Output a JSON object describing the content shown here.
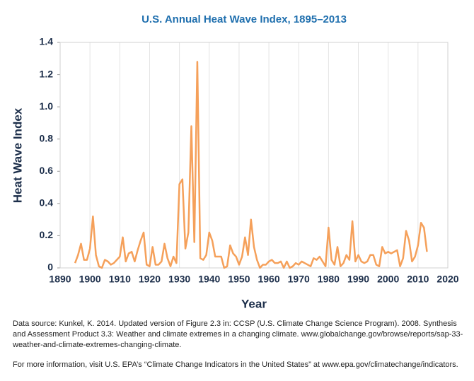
{
  "chart_data": {
    "type": "line",
    "title": "U.S. Annual Heat Wave Index, 1895–2013",
    "xlabel": "Year",
    "ylabel": "Heat Wave Index",
    "x": [
      1895,
      1896,
      1897,
      1898,
      1899,
      1900,
      1901,
      1902,
      1903,
      1904,
      1905,
      1906,
      1907,
      1908,
      1909,
      1910,
      1911,
      1912,
      1913,
      1914,
      1915,
      1916,
      1917,
      1918,
      1919,
      1920,
      1921,
      1922,
      1923,
      1924,
      1925,
      1926,
      1927,
      1928,
      1929,
      1930,
      1931,
      1932,
      1933,
      1934,
      1935,
      1936,
      1937,
      1938,
      1939,
      1940,
      1941,
      1942,
      1943,
      1944,
      1945,
      1946,
      1947,
      1948,
      1949,
      1950,
      1951,
      1952,
      1953,
      1954,
      1955,
      1956,
      1957,
      1958,
      1959,
      1960,
      1961,
      1962,
      1963,
      1964,
      1965,
      1966,
      1967,
      1968,
      1969,
      1970,
      1971,
      1972,
      1973,
      1974,
      1975,
      1976,
      1977,
      1978,
      1979,
      1980,
      1981,
      1982,
      1983,
      1984,
      1985,
      1986,
      1987,
      1988,
      1989,
      1990,
      1991,
      1992,
      1993,
      1994,
      1995,
      1996,
      1997,
      1998,
      1999,
      2000,
      2001,
      2002,
      2003,
      2004,
      2005,
      2006,
      2007,
      2008,
      2009,
      2010,
      2011,
      2012,
      2013
    ],
    "series": [
      {
        "name": "Heat Wave Index",
        "color": "#f5a05a",
        "values": [
          0.03,
          0.08,
          0.15,
          0.05,
          0.05,
          0.12,
          0.32,
          0.08,
          0.01,
          0.0,
          0.05,
          0.04,
          0.02,
          0.03,
          0.05,
          0.07,
          0.19,
          0.04,
          0.09,
          0.1,
          0.04,
          0.11,
          0.17,
          0.22,
          0.02,
          0.01,
          0.13,
          0.02,
          0.02,
          0.04,
          0.15,
          0.06,
          0.01,
          0.07,
          0.03,
          0.52,
          0.55,
          0.12,
          0.22,
          0.88,
          0.16,
          1.28,
          0.06,
          0.05,
          0.08,
          0.22,
          0.17,
          0.07,
          0.07,
          0.07,
          0.0,
          0.01,
          0.14,
          0.09,
          0.07,
          0.02,
          0.07,
          0.19,
          0.08,
          0.3,
          0.13,
          0.05,
          0.0,
          0.02,
          0.02,
          0.04,
          0.05,
          0.03,
          0.03,
          0.04,
          0.0,
          0.04,
          0.0,
          0.01,
          0.03,
          0.02,
          0.04,
          0.03,
          0.02,
          0.01,
          0.06,
          0.05,
          0.07,
          0.04,
          0.01,
          0.25,
          0.05,
          0.02,
          0.13,
          0.01,
          0.03,
          0.08,
          0.05,
          0.29,
          0.04,
          0.08,
          0.04,
          0.03,
          0.04,
          0.08,
          0.08,
          0.02,
          0.01,
          0.13,
          0.09,
          0.1,
          0.09,
          0.1,
          0.11,
          0.01,
          0.06,
          0.23,
          0.17,
          0.04,
          0.07,
          0.14,
          0.28,
          0.25,
          0.1
        ]
      }
    ],
    "xlim": [
      1890,
      2020
    ],
    "xticks": [
      1890,
      1900,
      1910,
      1920,
      1930,
      1940,
      1950,
      1960,
      1970,
      1980,
      1990,
      2000,
      2010,
      2020
    ],
    "ylim": [
      0,
      1.4
    ],
    "yticks": [
      0,
      0.2,
      0.4,
      0.6,
      0.8,
      {
        "value": 1,
        "label": "1.0"
      },
      1.2,
      1.4
    ],
    "grid": "x",
    "notes": [
      "Data source: Kunkel, K. 2014. Updated version of Figure 2.3 in: CCSP (U.S. Climate Change Science Program). 2008. Synthesis and Assessment Product 3.3: Weather and climate extremes in a changing climate. www.globalchange.gov/browse/reports/sap-33-weather-and-climate-extremes-changing-climate.",
      "For more information, visit U.S. EPA’s “Climate Change Indicators in the United States” at www.epa.gov/climatechange/indicators."
    ]
  }
}
